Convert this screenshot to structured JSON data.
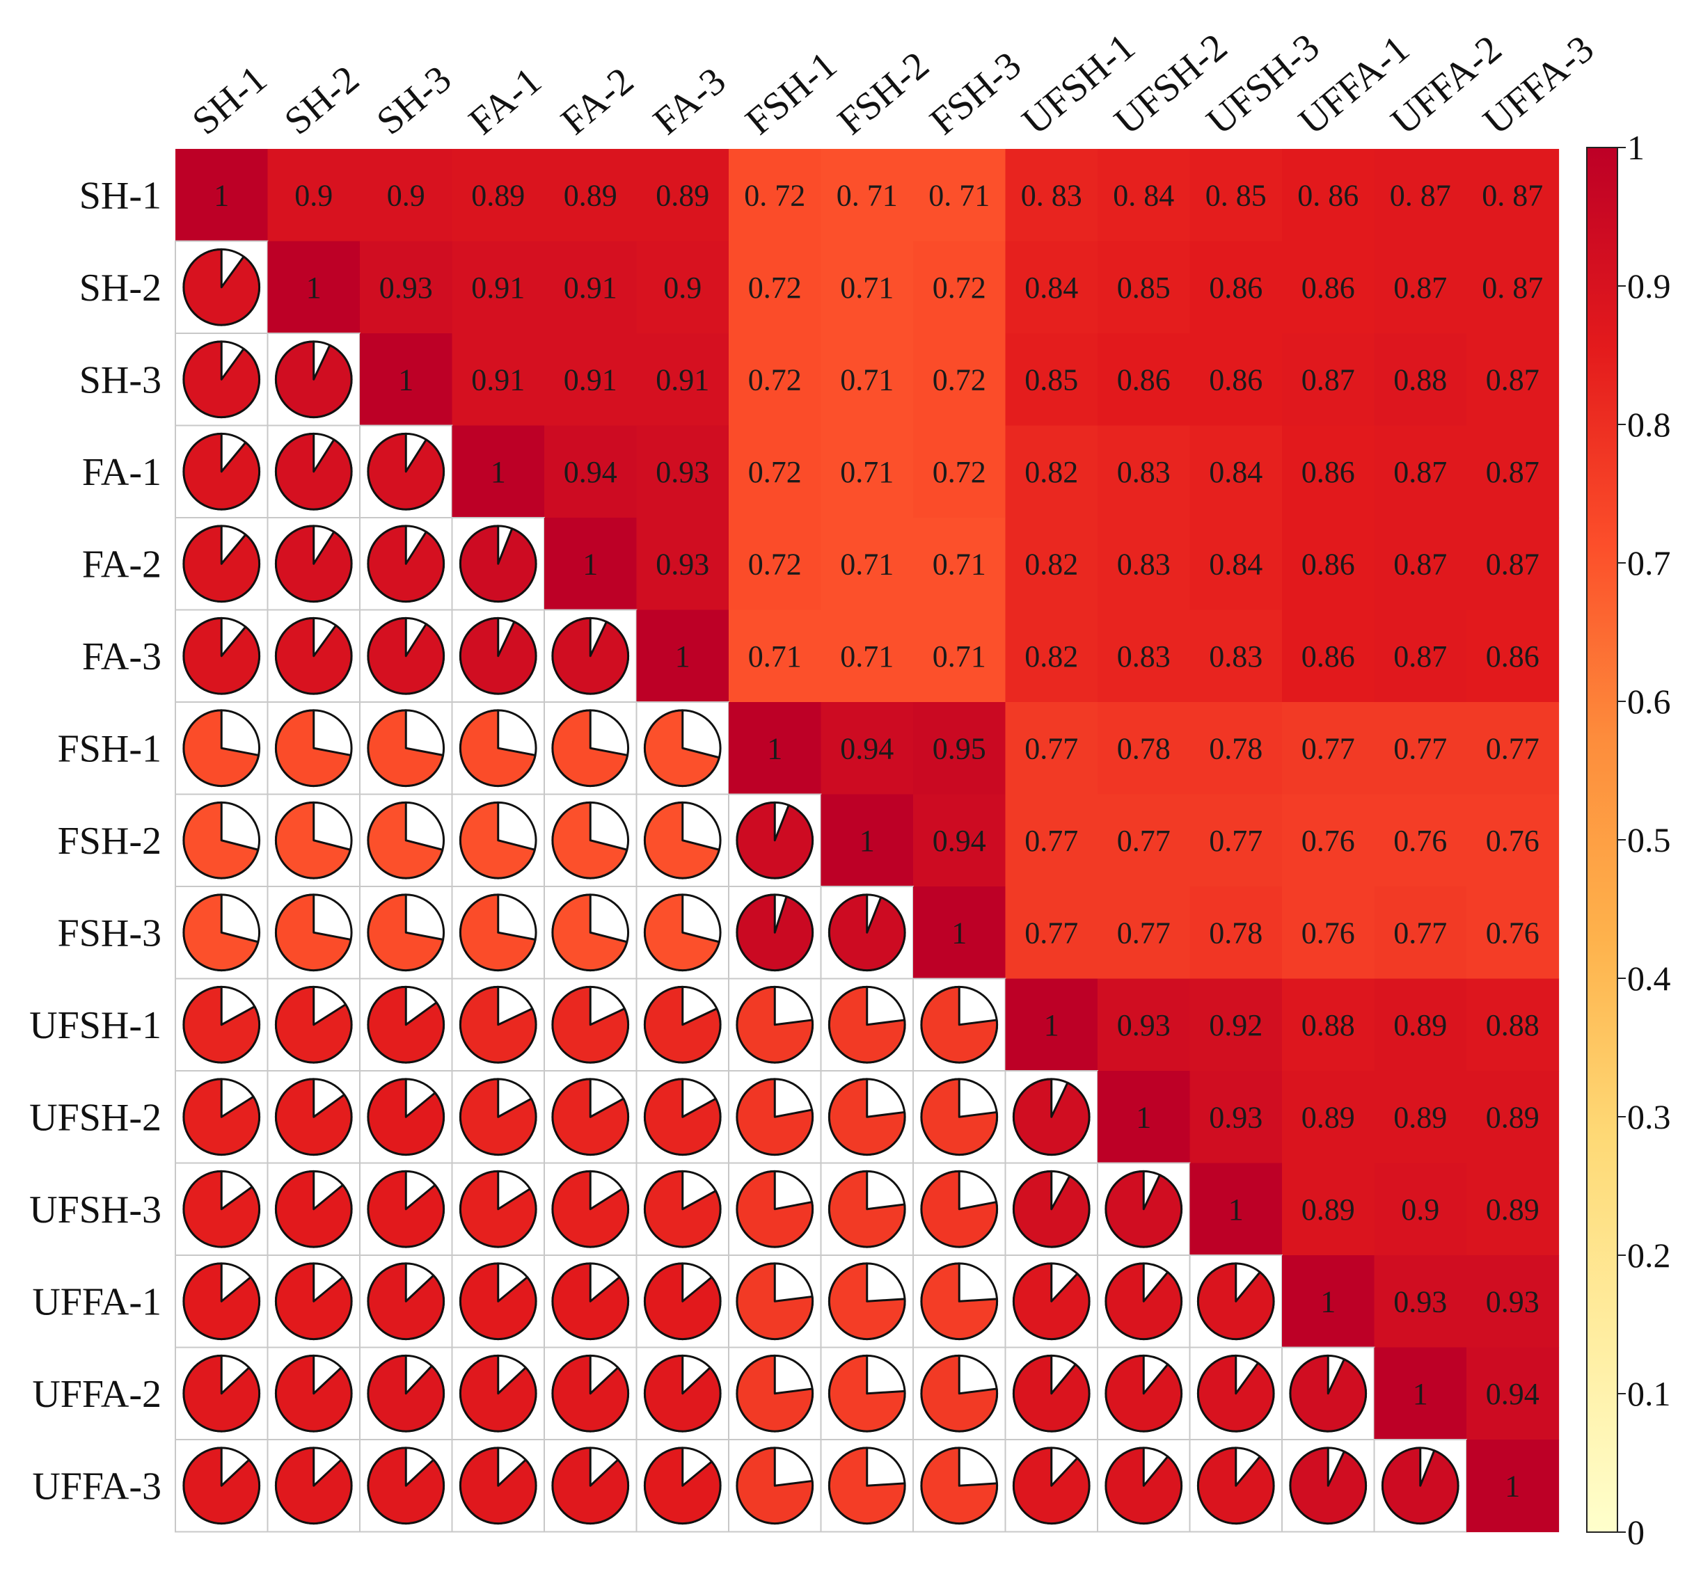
{
  "chart_data": {
    "type": "heatmap",
    "subtype": "correlation-matrix (upper: colored cells with values, lower: pie glyphs)",
    "labels": [
      "SH-1",
      "SH-2",
      "SH-3",
      "FA-1",
      "FA-2",
      "FA-3",
      "FSH-1",
      "FSH-2",
      "FSH-3",
      "UFSH-1",
      "UFSH-2",
      "UFSH-3",
      "UFFA-1",
      "UFFA-2",
      "UFFA-3"
    ],
    "value_text": [
      [
        "1",
        "0.9",
        "0.9",
        "0.89",
        "0.89",
        "0.89",
        "0. 72",
        "0. 71",
        "0. 71",
        "0. 83",
        "0. 84",
        "0. 85",
        "0. 86",
        "0. 87",
        "0. 87"
      ],
      [
        "",
        "1",
        "0.93",
        "0.91",
        "0.91",
        "0.9",
        "0.72",
        "0.71",
        "0.72",
        "0.84",
        "0.85",
        "0.86",
        "0.86",
        "0.87",
        "0. 87"
      ],
      [
        "",
        "",
        "1",
        "0.91",
        "0.91",
        "0.91",
        "0.72",
        "0.71",
        "0.72",
        "0.85",
        "0.86",
        "0.86",
        "0.87",
        "0.88",
        "0.87"
      ],
      [
        "",
        "",
        "",
        "1",
        "0.94",
        "0.93",
        "0.72",
        "0.71",
        "0.72",
        "0.82",
        "0.83",
        "0.84",
        "0.86",
        "0.87",
        "0.87"
      ],
      [
        "",
        "",
        "",
        "",
        "1",
        "0.93",
        "0.72",
        "0.71",
        "0.71",
        "0.82",
        "0.83",
        "0.84",
        "0.86",
        "0.87",
        "0.87"
      ],
      [
        "",
        "",
        "",
        "",
        "",
        "1",
        "0.71",
        "0.71",
        "0.71",
        "0.82",
        "0.83",
        "0.83",
        "0.86",
        "0.87",
        "0.86"
      ],
      [
        "",
        "",
        "",
        "",
        "",
        "",
        "1",
        "0.94",
        "0.95",
        "0.77",
        "0.78",
        "0.78",
        "0.77",
        "0.77",
        "0.77"
      ],
      [
        "",
        "",
        "",
        "",
        "",
        "",
        "",
        "1",
        "0.94",
        "0.77",
        "0.77",
        "0.77",
        "0.76",
        "0.76",
        "0.76"
      ],
      [
        "",
        "",
        "",
        "",
        "",
        "",
        "",
        "",
        "1",
        "0.77",
        "0.77",
        "0.78",
        "0.76",
        "0.77",
        "0.76"
      ],
      [
        "",
        "",
        "",
        "",
        "",
        "",
        "",
        "",
        "",
        "1",
        "0.93",
        "0.92",
        "0.88",
        "0.89",
        "0.88"
      ],
      [
        "",
        "",
        "",
        "",
        "",
        "",
        "",
        "",
        "",
        "",
        "1",
        "0.93",
        "0.89",
        "0.89",
        "0.89"
      ],
      [
        "",
        "",
        "",
        "",
        "",
        "",
        "",
        "",
        "",
        "",
        "",
        "1",
        "0.89",
        "0.9",
        "0.89"
      ],
      [
        "",
        "",
        "",
        "",
        "",
        "",
        "",
        "",
        "",
        "",
        "",
        "",
        "1",
        "0.93",
        "0.93"
      ],
      [
        "",
        "",
        "",
        "",
        "",
        "",
        "",
        "",
        "",
        "",
        "",
        "",
        "",
        "1",
        "0.94"
      ],
      [
        "",
        "",
        "",
        "",
        "",
        "",
        "",
        "",
        "",
        "",
        "",
        "",
        "",
        "",
        "1"
      ]
    ],
    "colorbar": {
      "min": 0,
      "max": 1,
      "ticks": [
        "0",
        "0.1",
        "0.2",
        "0.3",
        "0.4",
        "0.5",
        "0.6",
        "0.7",
        "0.8",
        "0.9",
        "1"
      ],
      "color_stops": [
        "#ffffcc",
        "#ffeda0",
        "#fed976",
        "#feb24c",
        "#fd8d3c",
        "#fc4e2a",
        "#e31a1c",
        "#bd0026"
      ]
    }
  }
}
